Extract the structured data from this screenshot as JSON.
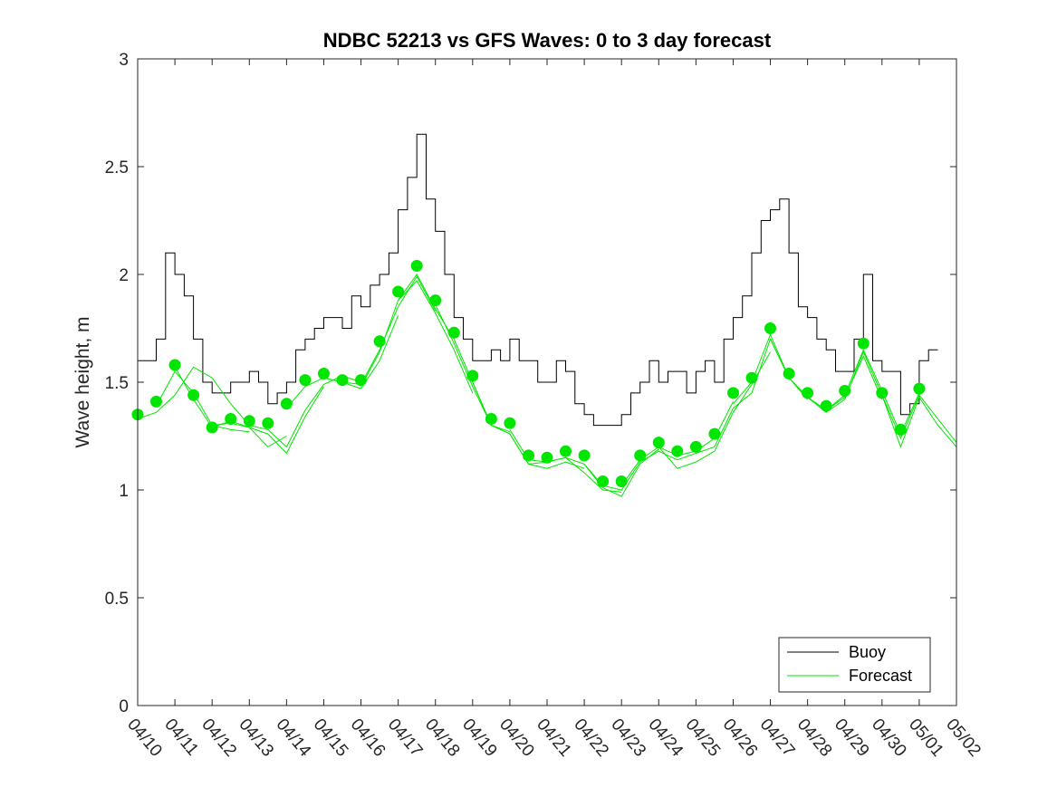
{
  "chart_data": {
    "type": "line",
    "title": "NDBC 52213 vs GFS Waves: 0 to 3 day forecast",
    "xlabel": "",
    "ylabel": "Wave height, m",
    "x_tick_labels": [
      "04/10",
      "04/11",
      "04/12",
      "04/13",
      "04/14",
      "04/15",
      "04/16",
      "04/17",
      "04/18",
      "04/19",
      "04/20",
      "04/21",
      "04/22",
      "04/23",
      "04/24",
      "04/25",
      "04/26",
      "04/27",
      "04/28",
      "04/29",
      "04/30",
      "05/01",
      "05/02"
    ],
    "xlim": [
      "04/10",
      "05/02"
    ],
    "ylim": [
      0,
      3
    ],
    "y_ticks": [
      0,
      0.5,
      1,
      1.5,
      2,
      2.5,
      3
    ],
    "y_tick_labels": [
      "0",
      "0.5",
      "1",
      "1.5",
      "2",
      "2.5",
      "3"
    ],
    "grid": false,
    "legend_position": "bottom-right",
    "colors": {
      "buoy": "#000000",
      "forecast": "#00e600"
    },
    "series": [
      {
        "name": "Buoy",
        "style": "thin black line (stepped)",
        "x": [
          "04/10 00:00",
          "04/10 06:00",
          "04/10 12:00",
          "04/10 18:00",
          "04/11 00:00",
          "04/11 06:00",
          "04/11 12:00",
          "04/11 18:00",
          "04/12 00:00",
          "04/12 06:00",
          "04/12 12:00",
          "04/12 18:00",
          "04/13 00:00",
          "04/13 06:00",
          "04/13 12:00",
          "04/13 18:00",
          "04/14 00:00",
          "04/14 06:00",
          "04/14 12:00",
          "04/14 18:00",
          "04/15 00:00",
          "04/15 06:00",
          "04/15 12:00",
          "04/15 18:00",
          "04/16 00:00",
          "04/16 06:00",
          "04/16 12:00",
          "04/16 18:00",
          "04/17 00:00",
          "04/17 06:00",
          "04/17 12:00",
          "04/17 18:00",
          "04/18 00:00",
          "04/18 06:00",
          "04/18 12:00",
          "04/18 18:00",
          "04/19 00:00",
          "04/19 06:00",
          "04/19 12:00",
          "04/19 18:00",
          "04/20 00:00",
          "04/20 06:00",
          "04/20 12:00",
          "04/20 18:00",
          "04/21 00:00",
          "04/21 06:00",
          "04/21 12:00",
          "04/21 18:00",
          "04/22 00:00",
          "04/22 06:00",
          "04/22 12:00",
          "04/22 18:00",
          "04/23 00:00",
          "04/23 06:00",
          "04/23 12:00",
          "04/23 18:00",
          "04/24 00:00",
          "04/24 06:00",
          "04/24 12:00",
          "04/24 18:00",
          "04/25 00:00",
          "04/25 06:00",
          "04/25 12:00",
          "04/25 18:00",
          "04/26 00:00",
          "04/26 06:00",
          "04/26 12:00",
          "04/26 18:00",
          "04/27 00:00",
          "04/27 06:00",
          "04/27 12:00",
          "04/27 18:00",
          "04/28 00:00",
          "04/28 06:00",
          "04/28 12:00",
          "04/28 18:00",
          "04/29 00:00",
          "04/29 06:00",
          "04/29 12:00",
          "04/29 18:00",
          "04/30 00:00",
          "04/30 06:00",
          "04/30 12:00",
          "04/30 18:00",
          "05/01 00:00",
          "05/01 06:00",
          "05/01 12:00"
        ],
        "y": [
          1.6,
          1.6,
          1.7,
          2.1,
          2.0,
          1.9,
          1.7,
          1.5,
          1.45,
          1.45,
          1.5,
          1.5,
          1.55,
          1.5,
          1.4,
          1.45,
          1.5,
          1.65,
          1.7,
          1.75,
          1.8,
          1.8,
          1.75,
          1.9,
          1.85,
          1.95,
          2.0,
          2.1,
          2.3,
          2.45,
          2.65,
          2.35,
          2.2,
          2.0,
          1.8,
          1.7,
          1.6,
          1.6,
          1.65,
          1.6,
          1.7,
          1.6,
          1.6,
          1.5,
          1.5,
          1.6,
          1.55,
          1.4,
          1.35,
          1.3,
          1.3,
          1.3,
          1.35,
          1.45,
          1.5,
          1.6,
          1.5,
          1.55,
          1.55,
          1.45,
          1.55,
          1.6,
          1.5,
          1.7,
          1.8,
          1.9,
          2.1,
          2.25,
          2.3,
          2.35,
          2.1,
          1.85,
          1.8,
          1.7,
          1.65,
          1.55,
          1.55,
          1.7,
          2.0,
          1.6,
          1.55,
          1.55,
          1.35,
          1.4,
          1.6,
          1.65,
          1.65
        ]
      },
      {
        "name": "Forecast",
        "style": "green markers at 12-hour steps, plus overlapping forecast runs",
        "x": [
          "04/10 00:00",
          "04/10 12:00",
          "04/11 00:00",
          "04/11 12:00",
          "04/12 00:00",
          "04/12 12:00",
          "04/13 00:00",
          "04/13 12:00",
          "04/14 00:00",
          "04/14 12:00",
          "04/15 00:00",
          "04/15 12:00",
          "04/16 00:00",
          "04/16 12:00",
          "04/17 00:00",
          "04/17 12:00",
          "04/18 00:00",
          "04/18 12:00",
          "04/19 00:00",
          "04/19 12:00",
          "04/20 00:00",
          "04/20 12:00",
          "04/21 00:00",
          "04/21 12:00",
          "04/22 00:00",
          "04/22 12:00",
          "04/23 00:00",
          "04/23 12:00",
          "04/24 00:00",
          "04/24 12:00",
          "04/25 00:00",
          "04/25 12:00",
          "04/26 00:00",
          "04/26 12:00",
          "04/27 00:00",
          "04/27 12:00",
          "04/28 00:00",
          "04/28 12:00",
          "04/29 00:00",
          "04/29 12:00",
          "04/30 00:00",
          "04/30 12:00",
          "05/01 00:00"
        ],
        "y": [
          1.35,
          1.41,
          1.58,
          1.44,
          1.29,
          1.33,
          1.32,
          1.31,
          1.4,
          1.51,
          1.54,
          1.51,
          1.51,
          1.69,
          1.92,
          2.04,
          1.88,
          1.73,
          1.53,
          1.33,
          1.31,
          1.16,
          1.15,
          1.18,
          1.16,
          1.04,
          1.04,
          1.16,
          1.22,
          1.18,
          1.2,
          1.26,
          1.45,
          1.52,
          1.75,
          1.54,
          1.45,
          1.39,
          1.46,
          1.68,
          1.45,
          1.28,
          1.47
        ],
        "runs": [
          {
            "start": "04/10 00:00",
            "y": [
              1.33,
              1.36,
              1.44,
              1.57,
              1.52,
              1.4,
              1.3
            ]
          },
          {
            "start": "04/10 12:00",
            "y": [
              1.39,
              1.55,
              1.45,
              1.3,
              1.28,
              1.27
            ]
          },
          {
            "start": "04/11 00:00",
            "y": [
              1.57,
              1.42,
              1.29,
              1.32,
              1.29,
              1.2,
              1.25
            ]
          },
          {
            "start": "04/12 00:00",
            "y": [
              1.3,
              1.31,
              1.29,
              1.26,
              1.17,
              1.34,
              1.48
            ]
          },
          {
            "start": "04/13 00:00",
            "y": [
              1.3,
              1.28,
              1.2,
              1.37,
              1.49,
              1.53,
              1.5
            ]
          },
          {
            "start": "04/14 00:00",
            "y": [
              1.38,
              1.48,
              1.52,
              1.5,
              1.47,
              1.6,
              1.81
            ]
          },
          {
            "start": "04/15 00:00",
            "y": [
              1.52,
              1.5,
              1.49,
              1.65,
              1.85,
              1.99,
              1.83
            ]
          },
          {
            "start": "04/16 00:00",
            "y": [
              1.48,
              1.64,
              1.88,
              1.97,
              1.82,
              1.65,
              1.45
            ]
          },
          {
            "start": "04/17 00:00",
            "y": [
              1.88,
              2.0,
              1.84,
              1.7,
              1.5,
              1.3,
              1.27
            ]
          },
          {
            "start": "04/18 00:00",
            "y": [
              1.86,
              1.68,
              1.48,
              1.3,
              1.26,
              1.12,
              1.13
            ]
          },
          {
            "start": "04/19 00:00",
            "y": [
              1.5,
              1.3,
              1.26,
              1.12,
              1.1,
              1.13,
              1.1
            ]
          },
          {
            "start": "04/20 00:00",
            "y": [
              1.28,
              1.14,
              1.13,
              1.15,
              1.08,
              1.0,
              0.99
            ]
          },
          {
            "start": "04/21 00:00",
            "y": [
              1.13,
              1.15,
              1.12,
              1.01,
              0.97,
              1.12,
              1.19
            ]
          },
          {
            "start": "04/22 00:00",
            "y": [
              1.12,
              1.02,
              1.0,
              1.13,
              1.18,
              1.14,
              1.17
            ]
          },
          {
            "start": "04/23 00:00",
            "y": [
              1.02,
              1.14,
              1.2,
              1.16,
              1.18,
              1.24,
              1.41
            ]
          },
          {
            "start": "04/24 00:00",
            "y": [
              1.2,
              1.1,
              1.13,
              1.18,
              1.36,
              1.49,
              1.64
            ]
          },
          {
            "start": "04/25 00:00",
            "y": [
              1.17,
              1.2,
              1.38,
              1.45,
              1.7,
              1.52,
              1.42
            ]
          },
          {
            "start": "04/26 00:00",
            "y": [
              1.4,
              1.5,
              1.72,
              1.52,
              1.43,
              1.36,
              1.42
            ]
          },
          {
            "start": "04/27 00:00",
            "y": [
              1.7,
              1.52,
              1.43,
              1.37,
              1.43,
              1.62,
              1.42
            ]
          },
          {
            "start": "04/28 00:00",
            "y": [
              1.43,
              1.37,
              1.44,
              1.65,
              1.46,
              1.26,
              1.45
            ]
          },
          {
            "start": "04/29 00:00",
            "y": [
              1.42,
              1.64,
              1.44,
              1.2,
              1.43,
              1.3,
              1.2
            ]
          },
          {
            "start": "04/30 00:00",
            "y": [
              1.44,
              1.24,
              1.44,
              1.33,
              1.22
            ]
          }
        ]
      }
    ]
  }
}
